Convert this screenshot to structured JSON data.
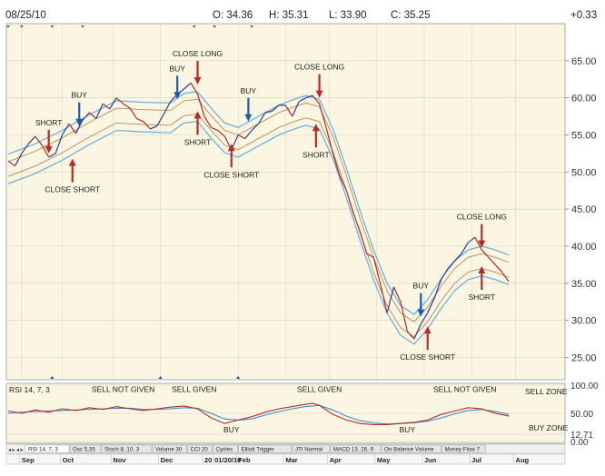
{
  "header": {
    "date": "08/25/10",
    "open": "O: 34.36",
    "high": "H: 35.31",
    "low": "L: 33.90",
    "close": "C: 35.25",
    "change": "+0.33"
  },
  "chart_data": [
    {
      "type": "line",
      "title": "",
      "y_ticks": [
        25,
        30,
        35,
        40,
        45,
        50,
        55,
        60,
        65
      ],
      "y_tick_labels": [
        "25.00",
        "30.00",
        "35.00",
        "40.00",
        "45.00",
        "50.00",
        "55.00",
        "60.00",
        "65.00"
      ],
      "ylim": [
        22,
        70
      ],
      "x_index_range": [
        0,
        152
      ],
      "price_series": [
        [
          0,
          51.5
        ],
        [
          2,
          50.8
        ],
        [
          4,
          52.5
        ],
        [
          6,
          53.8
        ],
        [
          8,
          54.8
        ],
        [
          10,
          53.6
        ],
        [
          12,
          52.0
        ],
        [
          14,
          52.5
        ],
        [
          16,
          55.0
        ],
        [
          18,
          56.5
        ],
        [
          20,
          55.2
        ],
        [
          22,
          57.0
        ],
        [
          24,
          58.0
        ],
        [
          26,
          57.2
        ],
        [
          28,
          59.2
        ],
        [
          30,
          58.5
        ],
        [
          32,
          60.0
        ],
        [
          34,
          59.2
        ],
        [
          36,
          58.6
        ],
        [
          38,
          57.2
        ],
        [
          40,
          56.8
        ],
        [
          42,
          55.8
        ],
        [
          44,
          56.2
        ],
        [
          46,
          57.8
        ],
        [
          48,
          59.5
        ],
        [
          50,
          60.5
        ],
        [
          52,
          61.2
        ],
        [
          54,
          62.0
        ],
        [
          56,
          60.5
        ],
        [
          58,
          57.5
        ],
        [
          60,
          56.0
        ],
        [
          62,
          55.6
        ],
        [
          64,
          54.8
        ],
        [
          66,
          53.0
        ],
        [
          68,
          55.0
        ],
        [
          70,
          54.5
        ],
        [
          72,
          55.6
        ],
        [
          74,
          56.5
        ],
        [
          76,
          58.0
        ],
        [
          78,
          58.2
        ],
        [
          80,
          59.0
        ],
        [
          82,
          59.0
        ],
        [
          84,
          57.5
        ],
        [
          86,
          59.5
        ],
        [
          88,
          60.0
        ],
        [
          90,
          60.3
        ],
        [
          92,
          59.2
        ],
        [
          94,
          56.0
        ],
        [
          96,
          52.5
        ],
        [
          98,
          49.5
        ],
        [
          100,
          47.5
        ],
        [
          102,
          44.5
        ],
        [
          104,
          42.0
        ],
        [
          106,
          39.0
        ],
        [
          108,
          38.5
        ],
        [
          110,
          35.0
        ],
        [
          112,
          31.0
        ],
        [
          114,
          34.5
        ],
        [
          116,
          32.5
        ],
        [
          118,
          28.5
        ],
        [
          120,
          27.5
        ],
        [
          122,
          29.5
        ],
        [
          124,
          31.0
        ],
        [
          126,
          33.0
        ],
        [
          128,
          35.5
        ],
        [
          130,
          37.0
        ],
        [
          132,
          38.0
        ],
        [
          134,
          39.0
        ],
        [
          136,
          40.5
        ],
        [
          138,
          41.2
        ],
        [
          140,
          39.5
        ],
        [
          142,
          38.5
        ],
        [
          144,
          37.5
        ],
        [
          146,
          36.5
        ],
        [
          148,
          35.2
        ]
      ],
      "envelope_center": [
        [
          0,
          50.4
        ],
        [
          8,
          51.8
        ],
        [
          16,
          53.6
        ],
        [
          24,
          55.7
        ],
        [
          32,
          57.6
        ],
        [
          40,
          57.4
        ],
        [
          48,
          57.3
        ],
        [
          52,
          58.6
        ],
        [
          56,
          58.8
        ],
        [
          60,
          56.6
        ],
        [
          64,
          54.6
        ],
        [
          68,
          54.0
        ],
        [
          72,
          55.0
        ],
        [
          76,
          56.0
        ],
        [
          80,
          57.0
        ],
        [
          84,
          57.7
        ],
        [
          88,
          58.3
        ],
        [
          92,
          57.8
        ],
        [
          96,
          53.8
        ],
        [
          100,
          48.5
        ],
        [
          104,
          42.8
        ],
        [
          108,
          37.5
        ],
        [
          112,
          33.0
        ],
        [
          116,
          30.0
        ],
        [
          120,
          28.8
        ],
        [
          124,
          30.8
        ],
        [
          128,
          33.6
        ],
        [
          132,
          36.0
        ],
        [
          136,
          37.5
        ],
        [
          140,
          38.0
        ],
        [
          144,
          37.5
        ],
        [
          148,
          36.8
        ]
      ],
      "envelope_offsets": [
        -2.0,
        -1.0,
        1.0,
        2.0
      ],
      "annotations": [
        {
          "label": "BUY",
          "color": "#1e5ca8",
          "x": 21,
          "y": 56.2,
          "dir": "down"
        },
        {
          "label": "SHORT",
          "color": "#b52a2a",
          "x": 12,
          "y": 52.5,
          "dir": "down"
        },
        {
          "label": "CLOSE SHORT",
          "color": "#b52a2a",
          "x": 19,
          "y": 51.8,
          "dir": "up"
        },
        {
          "label": "BUY",
          "color": "#1e5ca8",
          "x": 50,
          "y": 59.8,
          "dir": "down"
        },
        {
          "label": "CLOSE LONG",
          "color": "#b52a2a",
          "x": 56,
          "y": 61.8,
          "dir": "down"
        },
        {
          "label": "SHORT",
          "color": "#b52a2a",
          "x": 56,
          "y": 58.2,
          "dir": "up"
        },
        {
          "label": "BUY",
          "color": "#1e5ca8",
          "x": 71,
          "y": 56.8,
          "dir": "down"
        },
        {
          "label": "CLOSE SHORT",
          "color": "#b52a2a",
          "x": 66,
          "y": 53.8,
          "dir": "up"
        },
        {
          "label": "CLOSE LONG",
          "color": "#b52a2a",
          "x": 92,
          "y": 60.0,
          "dir": "down"
        },
        {
          "label": "SHORT",
          "color": "#b52a2a",
          "x": 91,
          "y": 56.5,
          "dir": "up"
        },
        {
          "label": "BUY",
          "color": "#1e5ca8",
          "x": 122,
          "y": 30.5,
          "dir": "down"
        },
        {
          "label": "CLOSE SHORT",
          "color": "#b52a2a",
          "x": 124,
          "y": 29.2,
          "dir": "up"
        },
        {
          "label": "CLOSE LONG",
          "color": "#b52a2a",
          "x": 140,
          "y": 39.8,
          "dir": "down"
        },
        {
          "label": "SHORT",
          "color": "#b52a2a",
          "x": 140,
          "y": 37.3,
          "dir": "up"
        }
      ]
    },
    {
      "type": "line",
      "title": "RSI 14, 7, 3",
      "y_ticks": [
        0,
        12.71,
        50,
        100
      ],
      "y_tick_labels": [
        "0.00",
        "12.71",
        "50.00",
        "100.00"
      ],
      "ylim": [
        0,
        100
      ],
      "zone_labels": {
        "sell": "SELL  ZONE",
        "buy": "BUY ZONE"
      },
      "rsi_main": [
        [
          0,
          54
        ],
        [
          4,
          50
        ],
        [
          8,
          56
        ],
        [
          12,
          52
        ],
        [
          16,
          58
        ],
        [
          20,
          55
        ],
        [
          24,
          60
        ],
        [
          28,
          57
        ],
        [
          32,
          62
        ],
        [
          36,
          58
        ],
        [
          40,
          55
        ],
        [
          44,
          58
        ],
        [
          48,
          61
        ],
        [
          52,
          63
        ],
        [
          56,
          58
        ],
        [
          60,
          42
        ],
        [
          64,
          32
        ],
        [
          68,
          38
        ],
        [
          72,
          44
        ],
        [
          76,
          52
        ],
        [
          80,
          58
        ],
        [
          84,
          62
        ],
        [
          88,
          66
        ],
        [
          90,
          68
        ],
        [
          92,
          64
        ],
        [
          96,
          48
        ],
        [
          100,
          38
        ],
        [
          104,
          32
        ],
        [
          108,
          30
        ],
        [
          112,
          30
        ],
        [
          116,
          32
        ],
        [
          120,
          34
        ],
        [
          124,
          38
        ],
        [
          128,
          48
        ],
        [
          132,
          54
        ],
        [
          136,
          60
        ],
        [
          140,
          58
        ],
        [
          144,
          50
        ],
        [
          148,
          45
        ]
      ],
      "rsi_signal": [
        [
          0,
          50
        ],
        [
          4,
          52
        ],
        [
          8,
          53
        ],
        [
          12,
          54
        ],
        [
          16,
          55
        ],
        [
          20,
          56
        ],
        [
          24,
          57
        ],
        [
          28,
          58
        ],
        [
          32,
          59
        ],
        [
          36,
          59
        ],
        [
          40,
          57
        ],
        [
          44,
          57
        ],
        [
          48,
          58
        ],
        [
          52,
          60
        ],
        [
          56,
          59
        ],
        [
          60,
          50
        ],
        [
          64,
          40
        ],
        [
          68,
          38
        ],
        [
          72,
          40
        ],
        [
          76,
          47
        ],
        [
          80,
          53
        ],
        [
          84,
          58
        ],
        [
          88,
          62
        ],
        [
          92,
          64
        ],
        [
          96,
          56
        ],
        [
          100,
          45
        ],
        [
          104,
          37
        ],
        [
          108,
          33
        ],
        [
          112,
          31
        ],
        [
          116,
          32
        ],
        [
          120,
          33
        ],
        [
          124,
          36
        ],
        [
          128,
          42
        ],
        [
          132,
          49
        ],
        [
          136,
          55
        ],
        [
          140,
          57
        ],
        [
          144,
          53
        ],
        [
          148,
          48
        ]
      ],
      "annotations": [
        {
          "label": "SELL NOT GIVEN",
          "x": 34,
          "y": 88
        },
        {
          "label": "SELL GIVEN",
          "x": 55,
          "y": 88
        },
        {
          "label": "SELL GIVEN",
          "x": 92,
          "y": 88
        },
        {
          "label": "SELL NOT GIVEN",
          "x": 135,
          "y": 88
        },
        {
          "label": "BUY",
          "x": 66,
          "y": 16
        },
        {
          "label": "BUY",
          "x": 118,
          "y": 16
        }
      ]
    }
  ],
  "tabs": [
    "RSI 14, 7, 3",
    "Osc 5,35",
    "Stoch 8, 10, 3",
    "Volume 30",
    "CCI 20",
    "Cycles",
    "Elliott Trigger",
    "JTI Normal",
    "MACD 13, 26, 9",
    "On Balance Volume",
    "Money Flow 7"
  ],
  "months": [
    {
      "label": "Sep",
      "x": 4
    },
    {
      "label": "Oct",
      "x": 16
    },
    {
      "label": "Nov",
      "x": 31
    },
    {
      "label": "Dec",
      "x": 45
    },
    {
      "label": "20",
      "x": 58
    },
    {
      "label": "01/20/10",
      "x": 61
    },
    {
      "label": "Feb",
      "x": 68
    },
    {
      "label": "Mar",
      "x": 82
    },
    {
      "label": "Apr",
      "x": 95
    },
    {
      "label": "May",
      "x": 109
    },
    {
      "label": "Jun",
      "x": 123
    },
    {
      "label": "Jul",
      "x": 137
    },
    {
      "label": "Aug",
      "x": 150
    }
  ],
  "colors": {
    "panel_bg": "#fbf6e2",
    "price_up": "#2d3a8c",
    "price_down": "#b52a2a",
    "env_outer": "#6fb1dc",
    "env_mid": "#b58a5a",
    "rsi_main": "#b52a2a",
    "rsi_signal": "#3a8ccf",
    "grid": "#d8d2bb"
  }
}
